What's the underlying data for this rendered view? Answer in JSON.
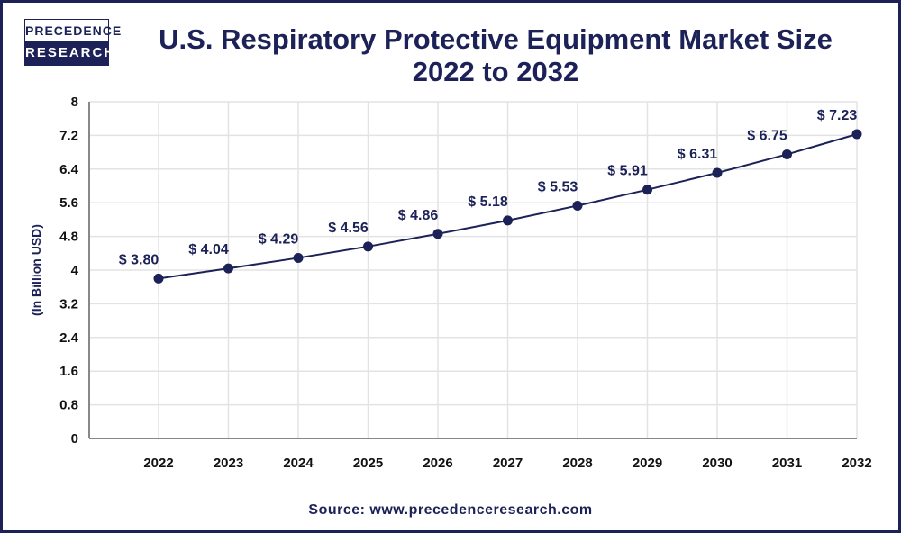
{
  "logo": {
    "top": "PRECEDENCE",
    "bottom": "RESEARCH"
  },
  "title_line1": "U.S. Respiratory Protective Equipment Market Size",
  "title_line2": "2022 to 2032",
  "source": "Source: www.precedenceresearch.com",
  "colors": {
    "brand": "#1c2257",
    "grid": "#e3e3e3",
    "axis": "#888888"
  },
  "chart_data": {
    "type": "line",
    "title": "U.S. Respiratory Protective Equipment Market Size 2022 to 2032",
    "xlabel": "",
    "ylabel": "(In Billion USD)",
    "ylim": [
      0,
      8
    ],
    "yticks": [
      "0",
      "0.8",
      "1.6",
      "2.4",
      "3.2",
      "4",
      "4.8",
      "5.6",
      "6.4",
      "7.2",
      "8"
    ],
    "grid": true,
    "categories": [
      "2022",
      "2023",
      "2024",
      "2025",
      "2026",
      "2027",
      "2028",
      "2029",
      "2030",
      "2031",
      "2032"
    ],
    "values": [
      3.8,
      4.04,
      4.29,
      4.56,
      4.86,
      5.18,
      5.53,
      5.91,
      6.31,
      6.75,
      7.23
    ],
    "data_labels": [
      "$ 3.80",
      "$ 4.04",
      "$ 4.29",
      "$ 4.56",
      "$ 4.86",
      "$ 5.18",
      "$ 5.53",
      "$ 5.91",
      "$ 6.31",
      "$ 6.75",
      "$ 7.23"
    ]
  }
}
